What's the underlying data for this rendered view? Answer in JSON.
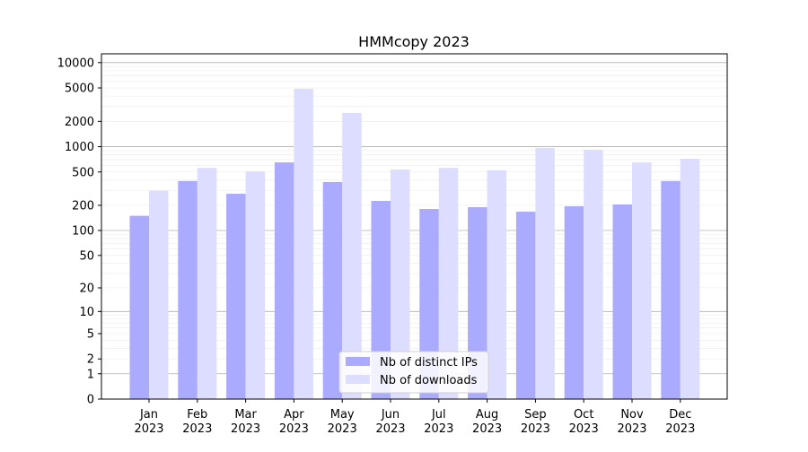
{
  "chart_data": {
    "type": "bar",
    "title": "HMMcopy 2023",
    "xlabel": "",
    "ylabel": "",
    "yscale": "log(1+y)",
    "ylim": [
      0,
      13000
    ],
    "yticks": [
      0,
      1,
      2,
      5,
      10,
      20,
      50,
      100,
      200,
      500,
      1000,
      2000,
      5000,
      10000
    ],
    "grid": true,
    "legend_position": "bottom-center",
    "categories": [
      "Jan\n2023",
      "Feb\n2023",
      "Mar\n2023",
      "Apr\n2023",
      "May\n2023",
      "Jun\n2023",
      "Jul\n2023",
      "Aug\n2023",
      "Sep\n2023",
      "Oct\n2023",
      "Nov\n2023",
      "Dec\n2023"
    ],
    "series": [
      {
        "name": "Nb of distinct IPs",
        "color": "#aaaaff",
        "values": [
          150,
          390,
          275,
          650,
          380,
          226,
          181,
          190,
          168,
          195,
          205,
          390
        ]
      },
      {
        "name": "Nb of downloads",
        "color": "#ddddff",
        "values": [
          300,
          560,
          510,
          4880,
          2520,
          535,
          560,
          523,
          966,
          920,
          650,
          719
        ]
      }
    ]
  }
}
